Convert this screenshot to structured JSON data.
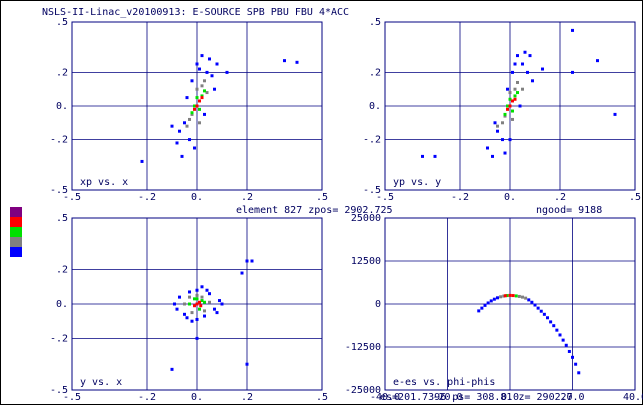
{
  "title": "NSLS-II-Linac_v20100913: E-SOURCE SPB PBU FBU 4*ACC",
  "status": {
    "element": "element  827 zpos=  2902.725",
    "ngood": "ngood=  9188",
    "footer": "es=201.7396 ps=  308.81 z=   2902.7"
  },
  "legend_colors": [
    "#800080",
    "#ff0000",
    "#00e000",
    "#808080",
    "#0000ff"
  ],
  "chart_data": [
    {
      "type": "scatter",
      "label": "xp vs. x",
      "grid": true,
      "xlim": [
        -0.5,
        0.5
      ],
      "ylim": [
        -0.5,
        0.5
      ],
      "xticks": [
        {
          "value": -0.5,
          "label": "-.5"
        },
        {
          "value": -0.2,
          "label": "-.2"
        },
        {
          "value": 0,
          "label": "0."
        },
        {
          "value": 0.2,
          "label": ".2"
        },
        {
          "value": 0.5,
          "label": ".5"
        }
      ],
      "yticks": [
        {
          "value": -0.5,
          "label": "-.5"
        },
        {
          "value": -0.2,
          "label": "-.2"
        },
        {
          "value": 0,
          "label": "0."
        },
        {
          "value": 0.2,
          "label": ".2"
        },
        {
          "value": 0.5,
          "label": ".5"
        }
      ],
      "series": [
        {
          "color": "#0000ff",
          "x": [
            -0.08,
            -0.06,
            -0.05,
            -0.03,
            -0.02,
            0.0,
            0.02,
            0.04,
            0.06,
            0.07,
            0.08,
            -0.07,
            -0.04,
            0.03,
            0.05,
            -0.01,
            0.01,
            0.35,
            0.4,
            -0.22,
            -0.1,
            0.12
          ],
          "y": [
            -0.22,
            -0.3,
            -0.1,
            -0.2,
            0.15,
            0.25,
            0.3,
            0.2,
            0.18,
            0.1,
            0.25,
            -0.15,
            0.05,
            -0.05,
            0.28,
            -0.25,
            0.22,
            0.27,
            0.26,
            -0.33,
            -0.12,
            0.2
          ]
        },
        {
          "color": "#808080",
          "x": [
            -0.04,
            -0.02,
            0,
            0.02,
            0.04,
            -0.03,
            0.03,
            0.01
          ],
          "y": [
            -0.12,
            -0.05,
            0.1,
            0.12,
            0.08,
            -0.08,
            0.15,
            -0.1
          ]
        },
        {
          "color": "#00e000",
          "x": [
            -0.02,
            0,
            0.02,
            0.01,
            -0.01,
            0.03
          ],
          "y": [
            -0.04,
            0.05,
            0.06,
            -0.02,
            0,
            0.09
          ]
        },
        {
          "color": "#ff0000",
          "x": [
            0,
            0.01,
            -0.01,
            0.02
          ],
          "y": [
            0,
            0.03,
            -0.02,
            0.05
          ]
        }
      ]
    },
    {
      "type": "scatter",
      "label": "yp vs. y",
      "grid": true,
      "xlim": [
        -0.5,
        0.5
      ],
      "ylim": [
        -0.5,
        0.5
      ],
      "xticks": [
        {
          "value": -0.5,
          "label": "-.5"
        },
        {
          "value": -0.2,
          "label": "-.2"
        },
        {
          "value": 0,
          "label": "0."
        },
        {
          "value": 0.2,
          "label": ".2"
        },
        {
          "value": 0.5,
          "label": ".5"
        }
      ],
      "yticks": [
        {
          "value": -0.5,
          "label": "-.5"
        },
        {
          "value": -0.2,
          "label": "-.2"
        },
        {
          "value": 0,
          "label": "0."
        },
        {
          "value": 0.2,
          "label": ".2"
        },
        {
          "value": 0.5,
          "label": ".5"
        }
      ],
      "series": [
        {
          "color": "#0000ff",
          "x": [
            -0.09,
            -0.07,
            -0.05,
            -0.03,
            -0.01,
            0.01,
            0.03,
            0.05,
            0.07,
            0.09,
            0.08,
            -0.06,
            -0.02,
            0.04,
            0.06,
            0.0,
            0.02,
            0.35,
            0.42,
            -0.35,
            -0.3,
            0.13,
            0.25,
            0.25
          ],
          "y": [
            -0.25,
            -0.3,
            -0.15,
            -0.2,
            0.1,
            0.2,
            0.3,
            0.25,
            0.2,
            0.15,
            0.3,
            -0.1,
            -0.28,
            0.0,
            0.32,
            -0.2,
            0.25,
            0.27,
            -0.05,
            -0.3,
            -0.3,
            0.22,
            0.45,
            0.2
          ]
        },
        {
          "color": "#808080",
          "x": [
            -0.05,
            -0.02,
            0,
            0.02,
            0.05,
            -0.03,
            0.03,
            0.01
          ],
          "y": [
            -0.12,
            -0.06,
            0.08,
            0.1,
            0.1,
            -0.1,
            0.14,
            -0.08
          ]
        },
        {
          "color": "#00e000",
          "x": [
            -0.02,
            0,
            0.02,
            0.01,
            -0.01,
            0.03
          ],
          "y": [
            -0.05,
            0.04,
            0.06,
            -0.03,
            0,
            0.08
          ]
        },
        {
          "color": "#ff0000",
          "x": [
            0,
            0.01,
            -0.01,
            0.02
          ],
          "y": [
            0,
            0.03,
            -0.02,
            0.04
          ]
        }
      ]
    },
    {
      "type": "scatter",
      "label": "y vs. x",
      "grid": true,
      "xlim": [
        -0.5,
        0.5
      ],
      "ylim": [
        -0.5,
        0.5
      ],
      "xticks": [
        {
          "value": -0.5,
          "label": "-.5"
        },
        {
          "value": -0.2,
          "label": "-.2"
        },
        {
          "value": 0,
          "label": "0."
        },
        {
          "value": 0.2,
          "label": ".2"
        },
        {
          "value": 0.5,
          "label": ".5"
        }
      ],
      "yticks": [
        {
          "value": -0.5,
          "label": "-.5"
        },
        {
          "value": -0.2,
          "label": "-.2"
        },
        {
          "value": 0,
          "label": "0."
        },
        {
          "value": 0.2,
          "label": ".2"
        },
        {
          "value": 0.5,
          "label": ".5"
        }
      ],
      "series": [
        {
          "color": "#0000ff",
          "x": [
            -0.09,
            -0.07,
            -0.05,
            -0.03,
            0,
            0.03,
            0.05,
            0.07,
            0.09,
            -0.08,
            0.08,
            -0.04,
            0.04,
            0.0,
            0.02,
            -0.02,
            0.1,
            0.2,
            0.22,
            -0.1,
            0.18,
            0.2,
            0.0
          ],
          "y": [
            0.0,
            0.04,
            -0.06,
            0.07,
            0.08,
            -0.07,
            0.06,
            -0.03,
            0.02,
            -0.03,
            -0.05,
            -0.08,
            0.08,
            -0.09,
            0.1,
            -0.1,
            0.0,
            0.25,
            0.25,
            -0.38,
            0.18,
            -0.35,
            -0.2
          ]
        },
        {
          "color": "#808080",
          "x": [
            -0.05,
            -0.03,
            0,
            0.03,
            0.05,
            -0.02,
            0.02
          ],
          "y": [
            0.0,
            0.04,
            0.05,
            -0.04,
            0.01,
            -0.05,
            0.04
          ]
        },
        {
          "color": "#00e000",
          "x": [
            -0.03,
            -0.01,
            0.01,
            0.03,
            0,
            0.02
          ],
          "y": [
            0.0,
            0.03,
            -0.03,
            0.01,
            0.03,
            0.02
          ]
        },
        {
          "color": "#ff0000",
          "x": [
            0,
            0.01,
            -0.01,
            0.015
          ],
          "y": [
            0,
            0.01,
            -0.01,
            -0.01
          ]
        }
      ]
    },
    {
      "type": "scatter",
      "label": "e-es vs. phi-phis",
      "grid": true,
      "xlim": [
        -40,
        40
      ],
      "ylim": [
        -25000,
        25000
      ],
      "xticks": [
        {
          "value": -40,
          "label": "-40.0"
        },
        {
          "value": -20,
          "label": "-20.0"
        },
        {
          "value": 0,
          "label": "0.0"
        },
        {
          "value": 20,
          "label": "20.0"
        },
        {
          "value": 40,
          "label": "40.0"
        }
      ],
      "yticks": [
        -25000,
        -12500,
        0,
        12500,
        25000
      ],
      "series": [
        {
          "color": "#0000ff",
          "x": [
            -10,
            -9,
            -8,
            -7,
            -6,
            -5,
            -4,
            6,
            7,
            8,
            9,
            10,
            11,
            12,
            13,
            14,
            15,
            16,
            17,
            18,
            19,
            20,
            21,
            22
          ],
          "y": [
            -2000,
            -1200,
            -400,
            300,
            900,
            1400,
            1800,
            1200,
            500,
            -300,
            -1200,
            -2100,
            -3000,
            -4000,
            -5200,
            -6300,
            -7600,
            -9000,
            -10500,
            -12000,
            -13800,
            -15500,
            -17500,
            -20000
          ]
        },
        {
          "color": "#808080",
          "x": [
            -3,
            -2,
            3,
            4,
            5
          ],
          "y": [
            2100,
            2300,
            2200,
            2000,
            1700
          ]
        },
        {
          "color": "#00e000",
          "x": [
            -1,
            2
          ],
          "y": [
            2450,
            2350
          ]
        },
        {
          "color": "#ff0000",
          "x": [
            -1.5,
            0,
            1
          ],
          "y": [
            2400,
            2500,
            2450
          ]
        }
      ]
    }
  ]
}
